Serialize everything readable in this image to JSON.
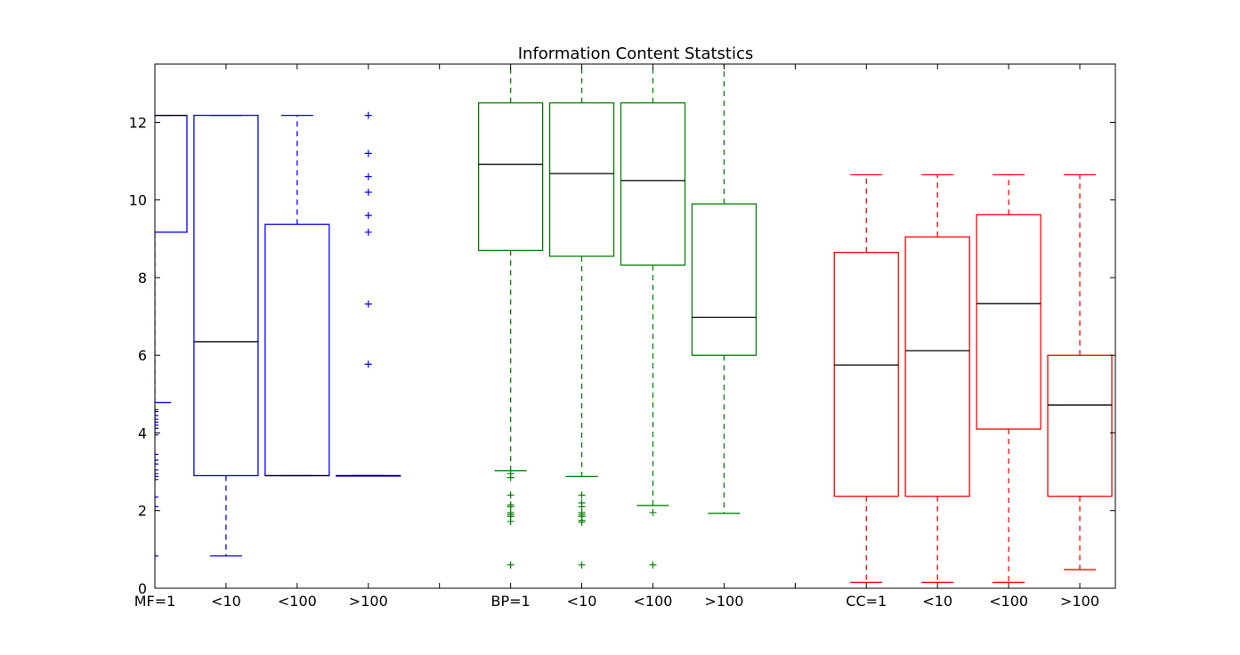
{
  "chart_data": {
    "type": "boxplot",
    "title": "Information Content Statstics",
    "xlabel": "",
    "ylabel": "",
    "ylim": [
      0,
      13.5
    ],
    "yticks": [
      0,
      2,
      4,
      6,
      8,
      10,
      12
    ],
    "grid": false,
    "groups": [
      {
        "color": "#0000ff",
        "boxes": [
          {
            "label": "MF=1",
            "pos": 1,
            "whislo": 4.78,
            "q1": 9.17,
            "med": 12.18,
            "q3": 12.18,
            "whishi": 12.18,
            "fliers": [
              4.6,
              4.55,
              4.45,
              4.35,
              4.28,
              4.2,
              4.12,
              3.95,
              3.45,
              3.3,
              3.2,
              3.05,
              2.95,
              2.88,
              2.8,
              2.35,
              2.1,
              0.83
            ]
          },
          {
            "label": "<10",
            "pos": 2,
            "whislo": 0.83,
            "q1": 2.9,
            "med": 6.35,
            "q3": 12.18,
            "whishi": 12.18,
            "fliers": []
          },
          {
            "label": "<100",
            "pos": 3,
            "whislo": 2.9,
            "q1": 2.9,
            "med": 2.9,
            "q3": 9.37,
            "whishi": 12.18,
            "fliers": []
          },
          {
            "label": ">100",
            "pos": 4,
            "whislo": 2.9,
            "q1": 2.9,
            "med": 2.9,
            "q3": 2.9,
            "whishi": 2.9,
            "fliers": [
              12.18,
              11.2,
              10.6,
              10.2,
              9.6,
              9.17,
              7.32,
              5.77
            ]
          }
        ]
      },
      {
        "color": "#008000",
        "boxes": [
          {
            "label": "BP=1",
            "pos": 6,
            "whislo": 3.03,
            "q1": 8.7,
            "med": 10.92,
            "q3": 12.5,
            "whishi": 14.2,
            "fliers": [
              2.95,
              2.85,
              2.4,
              2.15,
              2.1,
              1.95,
              1.9,
              1.85,
              1.72,
              0.6
            ]
          },
          {
            "label": "<10",
            "pos": 7,
            "whislo": 2.88,
            "q1": 8.55,
            "med": 10.68,
            "q3": 12.5,
            "whishi": 14.2,
            "fliers": [
              2.4,
              2.2,
              2.1,
              1.95,
              1.9,
              1.85,
              1.75,
              1.7,
              0.6
            ]
          },
          {
            "label": "<100",
            "pos": 8,
            "whislo": 2.13,
            "q1": 8.32,
            "med": 10.5,
            "q3": 12.5,
            "whishi": 14.2,
            "fliers": [
              1.95,
              0.6
            ]
          },
          {
            "label": ">100",
            "pos": 9,
            "whislo": 1.93,
            "q1": 6.0,
            "med": 6.98,
            "q3": 9.9,
            "whishi": 14.2,
            "fliers": []
          }
        ]
      },
      {
        "color": "#ff0000",
        "boxes": [
          {
            "label": "CC=1",
            "pos": 11,
            "whislo": 0.15,
            "q1": 2.37,
            "med": 5.75,
            "q3": 8.65,
            "whishi": 10.65,
            "fliers": []
          },
          {
            "label": "<10",
            "pos": 12,
            "whislo": 0.15,
            "q1": 2.37,
            "med": 6.12,
            "q3": 9.05,
            "whishi": 10.65,
            "fliers": []
          },
          {
            "label": "<100",
            "pos": 13,
            "whislo": 0.15,
            "q1": 4.1,
            "med": 7.33,
            "q3": 9.62,
            "whishi": 10.65,
            "fliers": []
          },
          {
            "label": ">100",
            "pos": 14,
            "whislo": 0.48,
            "q1": 2.37,
            "med": 4.72,
            "q3": 6.0,
            "whishi": 10.65,
            "fliers": []
          }
        ]
      }
    ],
    "xticks": [
      1,
      2,
      3,
      4,
      5,
      6,
      7,
      8,
      9,
      10,
      11,
      12,
      13,
      14
    ],
    "xlim": [
      1,
      14.5
    ]
  }
}
